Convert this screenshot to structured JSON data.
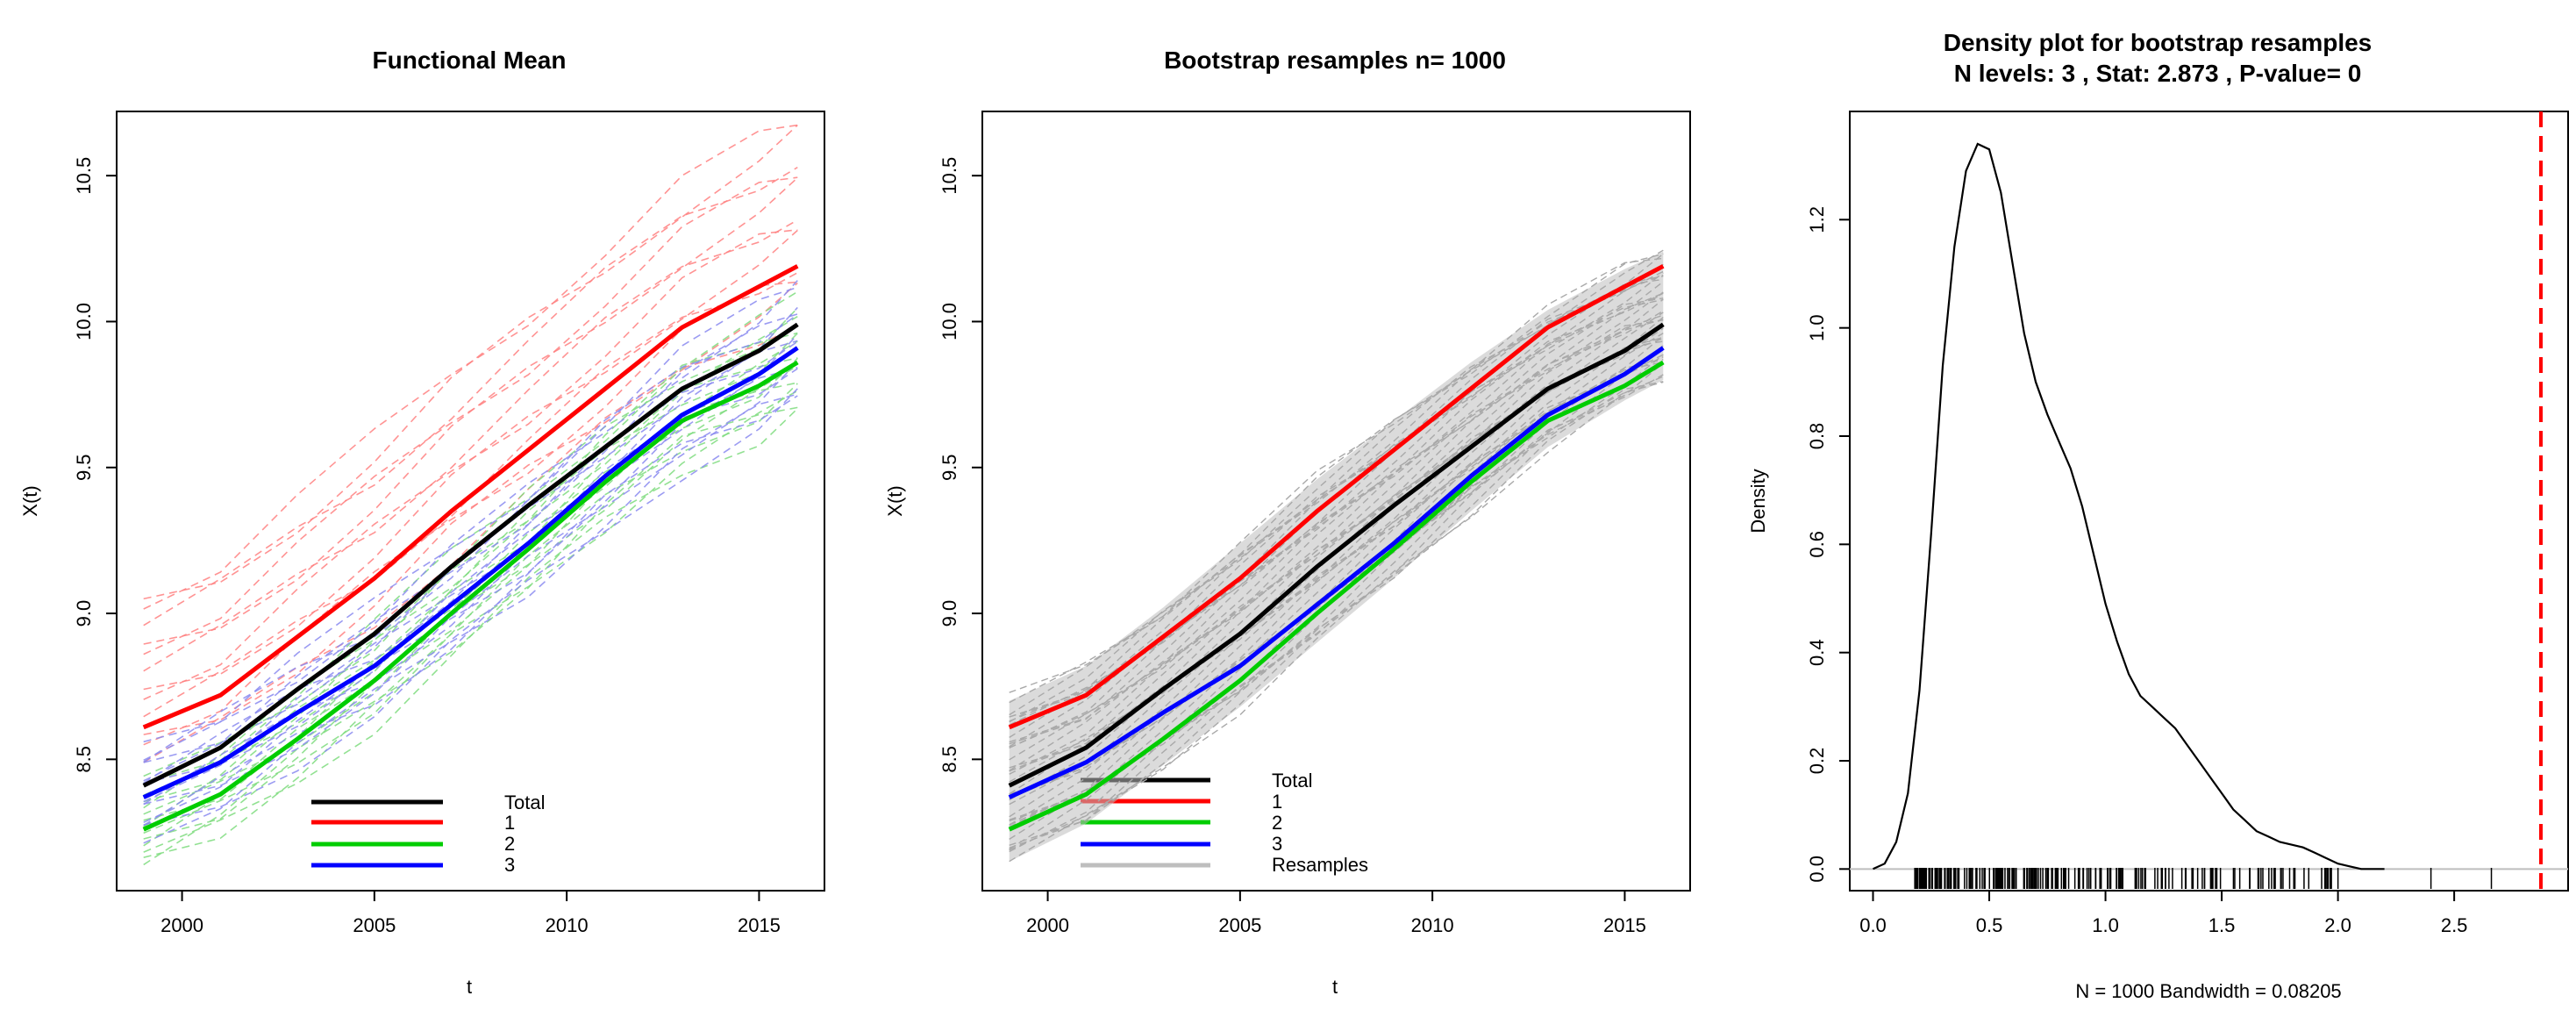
{
  "chart_data": [
    {
      "type": "line",
      "title": "Functional Mean",
      "xlabel": "t",
      "ylabel": "X(t)",
      "xlim": [
        1998.3,
        2016.7
      ],
      "ylim": [
        8.05,
        10.72
      ],
      "xticks": [
        2000,
        2005,
        2010,
        2015
      ],
      "xtick_labels": [
        "2000",
        "2005",
        "2010",
        "2015"
      ],
      "yticks": [
        8.5,
        9.0,
        9.5,
        10.0,
        10.5
      ],
      "ytick_labels": [
        "8.5",
        "9.0",
        "9.5",
        "10.0",
        "10.5"
      ],
      "x": [
        1999,
        2001,
        2003,
        2005,
        2007,
        2009,
        2011,
        2013,
        2015,
        2016
      ],
      "series": [
        {
          "name": "Total",
          "color": "#000000",
          "values": [
            8.41,
            8.54,
            8.74,
            8.93,
            9.16,
            9.37,
            9.57,
            9.77,
            9.9,
            9.99
          ]
        },
        {
          "name": "1",
          "color": "#ff0000",
          "values": [
            8.61,
            8.72,
            8.92,
            9.12,
            9.35,
            9.56,
            9.77,
            9.98,
            10.12,
            10.19
          ]
        },
        {
          "name": "2",
          "color": "#00cd00",
          "values": [
            8.26,
            8.38,
            8.57,
            8.77,
            9.0,
            9.22,
            9.45,
            9.66,
            9.78,
            9.86
          ]
        },
        {
          "name": "3",
          "color": "#0000ff",
          "values": [
            8.37,
            8.49,
            8.66,
            8.82,
            9.03,
            9.24,
            9.47,
            9.68,
            9.82,
            9.91
          ]
        }
      ],
      "legend_position": "bottom-center",
      "legend": [
        "Total",
        "1",
        "2",
        "3"
      ],
      "background_curves": "dashed individual curves in group colours"
    },
    {
      "type": "line",
      "title": "Bootstrap resamples n= 1000",
      "xlabel": "t",
      "ylabel": "X(t)",
      "xlim": [
        1998.3,
        2016.7
      ],
      "ylim": [
        8.05,
        10.72
      ],
      "xticks": [
        2000,
        2005,
        2010,
        2015
      ],
      "xtick_labels": [
        "2000",
        "2005",
        "2010",
        "2015"
      ],
      "yticks": [
        8.5,
        9.0,
        9.5,
        10.0,
        10.5
      ],
      "ytick_labels": [
        "8.5",
        "9.0",
        "9.5",
        "10.0",
        "10.5"
      ],
      "x": [
        1999,
        2001,
        2003,
        2005,
        2007,
        2009,
        2011,
        2013,
        2015,
        2016
      ],
      "series": [
        {
          "name": "Total",
          "color": "#000000",
          "values": [
            8.41,
            8.54,
            8.74,
            8.93,
            9.16,
            9.37,
            9.57,
            9.77,
            9.9,
            9.99
          ]
        },
        {
          "name": "1",
          "color": "#ff0000",
          "values": [
            8.61,
            8.72,
            8.92,
            9.12,
            9.35,
            9.56,
            9.77,
            9.98,
            10.12,
            10.19
          ]
        },
        {
          "name": "2",
          "color": "#00cd00",
          "values": [
            8.26,
            8.38,
            8.57,
            8.77,
            9.0,
            9.22,
            9.45,
            9.66,
            9.78,
            9.86
          ]
        },
        {
          "name": "3",
          "color": "#0000ff",
          "values": [
            8.37,
            8.49,
            8.66,
            8.82,
            9.03,
            9.24,
            9.47,
            9.68,
            9.82,
            9.91
          ]
        }
      ],
      "resample_band": {
        "color": "#bebebe",
        "lower": [
          8.15,
          8.28,
          8.48,
          8.68,
          8.9,
          9.12,
          9.35,
          9.57,
          9.73,
          9.8
        ],
        "upper": [
          8.7,
          8.82,
          9.02,
          9.24,
          9.46,
          9.66,
          9.86,
          10.04,
          10.18,
          10.24
        ]
      },
      "legend_position": "bottom-center",
      "legend": [
        "Total",
        "1",
        "2",
        "3",
        "Resamples"
      ]
    },
    {
      "type": "line",
      "title": "Density plot for bootstrap resamples",
      "subtitle": "N levels: 3 , Stat: 2.873 , P-value= 0",
      "xlabel": "N = 1000   Bandwidth = 0.08205",
      "ylabel": "Density",
      "xlim": [
        -0.1,
        2.99
      ],
      "ylim": [
        -0.04,
        1.4
      ],
      "xticks": [
        0.0,
        0.5,
        1.0,
        1.5,
        2.0,
        2.5
      ],
      "xtick_labels": [
        "0.0",
        "0.5",
        "1.0",
        "1.5",
        "2.0",
        "2.5"
      ],
      "yticks": [
        0.0,
        0.2,
        0.4,
        0.6,
        0.8,
        1.0,
        1.2
      ],
      "ytick_labels": [
        "0.0",
        "0.2",
        "0.4",
        "0.6",
        "0.8",
        "1.0",
        "1.2"
      ],
      "density_x": [
        0.0,
        0.05,
        0.1,
        0.15,
        0.2,
        0.25,
        0.3,
        0.35,
        0.4,
        0.45,
        0.5,
        0.55,
        0.6,
        0.65,
        0.7,
        0.75,
        0.8,
        0.85,
        0.9,
        0.95,
        1.0,
        1.05,
        1.1,
        1.15,
        1.2,
        1.25,
        1.3,
        1.35,
        1.4,
        1.45,
        1.5,
        1.55,
        1.6,
        1.65,
        1.7,
        1.75,
        1.8,
        1.85,
        1.9,
        1.95,
        2.0,
        2.05,
        2.1,
        2.15,
        2.2
      ],
      "density_y": [
        0.0,
        0.01,
        0.05,
        0.14,
        0.33,
        0.62,
        0.93,
        1.15,
        1.29,
        1.34,
        1.33,
        1.25,
        1.12,
        0.99,
        0.9,
        0.84,
        0.79,
        0.74,
        0.67,
        0.58,
        0.49,
        0.42,
        0.36,
        0.32,
        0.3,
        0.28,
        0.26,
        0.23,
        0.2,
        0.17,
        0.14,
        0.11,
        0.09,
        0.07,
        0.06,
        0.05,
        0.045,
        0.04,
        0.03,
        0.02,
        0.01,
        0.005,
        0.0,
        0.0,
        0.0
      ],
      "rug_range": [
        0.18,
        2.1
      ],
      "rug_outliers": [
        2.4,
        2.66
      ],
      "statistic_line": {
        "x": 2.873,
        "color": "#ff0000",
        "style": "dashed"
      }
    }
  ]
}
